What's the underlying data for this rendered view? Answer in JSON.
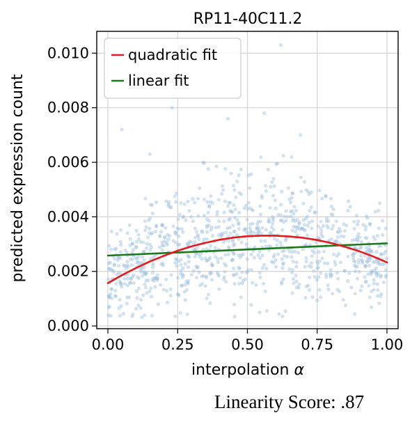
{
  "caption": "Linearity Score: .87",
  "chart_data": {
    "type": "scatter",
    "title": "RP11-40C11.2",
    "xlabel": "interpolation",
    "xlabel_symbol": "α",
    "ylabel": "predicted expression count",
    "xlim": [
      -0.04,
      1.04
    ],
    "ylim": [
      -0.0001,
      0.0108
    ],
    "xticks": [
      0.0,
      0.25,
      0.5,
      0.75,
      1.0
    ],
    "xtick_labels": [
      "0.00",
      "0.25",
      "0.50",
      "0.75",
      "1.00"
    ],
    "yticks": [
      0.0,
      0.002,
      0.004,
      0.006,
      0.008,
      0.01
    ],
    "ytick_labels": [
      "0.000",
      "0.002",
      "0.004",
      "0.006",
      "0.008",
      "0.010"
    ],
    "grid": true,
    "legend_position": "top-left",
    "series": [
      {
        "name": "quadratic fit",
        "kind": "line",
        "color": "#e41a1c",
        "x": [
          0.0,
          0.05,
          0.1,
          0.15,
          0.2,
          0.25,
          0.3,
          0.35,
          0.4,
          0.45,
          0.5,
          0.55,
          0.6,
          0.65,
          0.7,
          0.75,
          0.8,
          0.85,
          0.9,
          0.95,
          1.0
        ],
        "y": [
          0.00157,
          0.00186,
          0.00212,
          0.00236,
          0.00257,
          0.00276,
          0.00292,
          0.00305,
          0.00316,
          0.00324,
          0.00329,
          0.00331,
          0.00331,
          0.00328,
          0.00323,
          0.00315,
          0.00304,
          0.0029,
          0.00274,
          0.00255,
          0.00233
        ]
      },
      {
        "name": "linear fit",
        "kind": "line",
        "color": "#1a7a1a",
        "x": [
          0.0,
          1.0
        ],
        "y": [
          0.00258,
          0.00303
        ]
      },
      {
        "name": "",
        "kind": "scatter",
        "color": "#9ebfdb",
        "n_points": 1000,
        "x_range": [
          0.0,
          1.0
        ],
        "mean_curve": "quadratic fit",
        "spread_sd": 0.00095,
        "outliers": [
          {
            "x": 0.62,
            "y": 0.0103
          },
          {
            "x": 0.23,
            "y": 0.008
          },
          {
            "x": 0.05,
            "y": 0.0072
          },
          {
            "x": 0.56,
            "y": 0.0078
          },
          {
            "x": 0.43,
            "y": 0.0076
          },
          {
            "x": 0.69,
            "y": 0.007
          },
          {
            "x": 0.15,
            "y": 0.0063
          }
        ]
      }
    ]
  }
}
